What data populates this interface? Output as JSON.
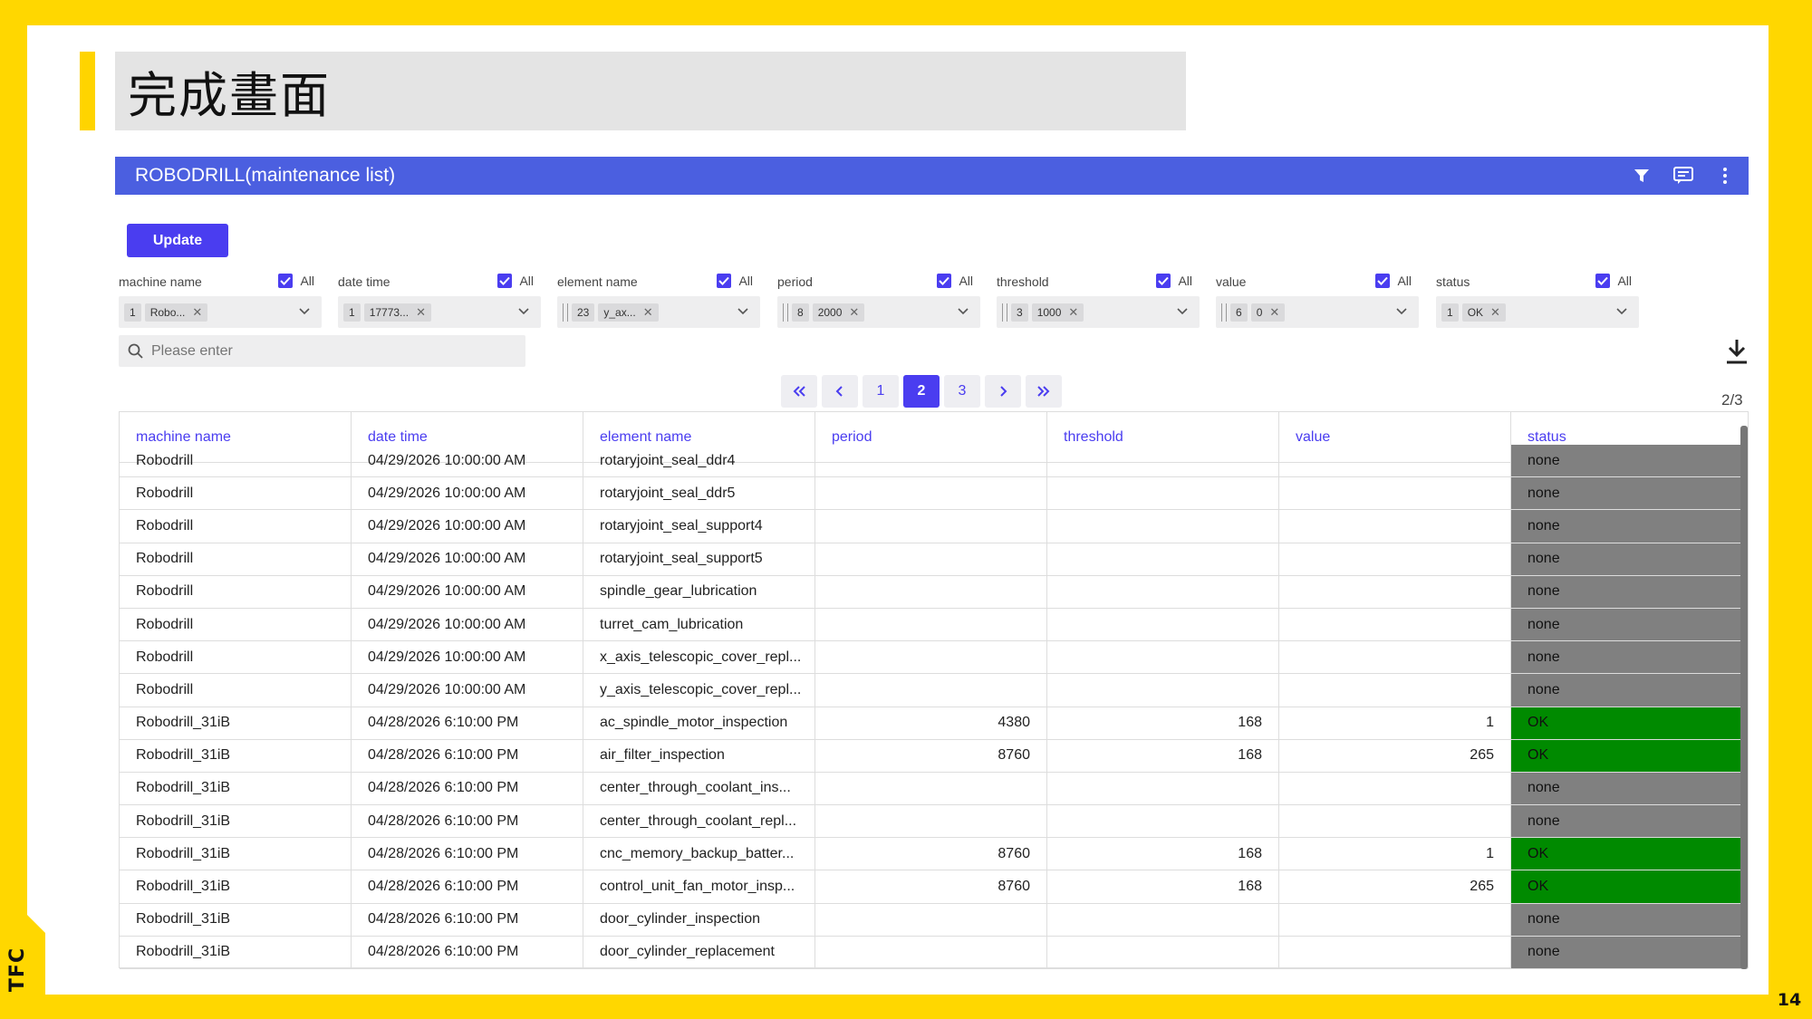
{
  "slide": {
    "title": "完成畫面",
    "logo": "TFC",
    "page_number": "14"
  },
  "app": {
    "title": "ROBODRILL(maintenance list)",
    "icons": [
      "filter-icon",
      "comment-icon",
      "more-vertical-icon"
    ],
    "accent_color": "#4B5FE0",
    "button_color": "#4A3DF0",
    "update_label": "Update"
  },
  "filters": [
    {
      "label": "machine name",
      "all_label": "All",
      "count": "1",
      "value": "Robo..."
    },
    {
      "label": "date time",
      "all_label": "All",
      "count": "1",
      "value": "17773..."
    },
    {
      "label": "element name",
      "all_label": "All",
      "count": "23",
      "value": "y_ax..."
    },
    {
      "label": "period",
      "all_label": "All",
      "count": "8",
      "value": "2000"
    },
    {
      "label": "threshold",
      "all_label": "All",
      "count": "3",
      "value": "1000"
    },
    {
      "label": "value",
      "all_label": "All",
      "count": "6",
      "value": "0"
    },
    {
      "label": "status",
      "all_label": "All",
      "count": "1",
      "value": "OK"
    }
  ],
  "search": {
    "placeholder": "Please enter"
  },
  "pagination": {
    "pages": [
      "1",
      "2",
      "3"
    ],
    "current": "2",
    "count_label": "2/3"
  },
  "table": {
    "columns": [
      "machine name",
      "date time",
      "element name",
      "period",
      "threshold",
      "value",
      "status"
    ],
    "rows": [
      [
        "Robodrill",
        "04/29/2026 10:00:00 AM",
        "rotaryjoint_seal_ddr4",
        "",
        "",
        "",
        "none"
      ],
      [
        "Robodrill",
        "04/29/2026 10:00:00 AM",
        "rotaryjoint_seal_ddr5",
        "",
        "",
        "",
        "none"
      ],
      [
        "Robodrill",
        "04/29/2026 10:00:00 AM",
        "rotaryjoint_seal_support4",
        "",
        "",
        "",
        "none"
      ],
      [
        "Robodrill",
        "04/29/2026 10:00:00 AM",
        "rotaryjoint_seal_support5",
        "",
        "",
        "",
        "none"
      ],
      [
        "Robodrill",
        "04/29/2026 10:00:00 AM",
        "spindle_gear_lubrication",
        "",
        "",
        "",
        "none"
      ],
      [
        "Robodrill",
        "04/29/2026 10:00:00 AM",
        "turret_cam_lubrication",
        "",
        "",
        "",
        "none"
      ],
      [
        "Robodrill",
        "04/29/2026 10:00:00 AM",
        "x_axis_telescopic_cover_repl...",
        "",
        "",
        "",
        "none"
      ],
      [
        "Robodrill",
        "04/29/2026 10:00:00 AM",
        "y_axis_telescopic_cover_repl...",
        "",
        "",
        "",
        "none"
      ],
      [
        "Robodrill_31iB",
        "04/28/2026 6:10:00 PM",
        "ac_spindle_motor_inspection",
        "4380",
        "168",
        "1",
        "OK"
      ],
      [
        "Robodrill_31iB",
        "04/28/2026 6:10:00 PM",
        "air_filter_inspection",
        "8760",
        "168",
        "265",
        "OK"
      ],
      [
        "Robodrill_31iB",
        "04/28/2026 6:10:00 PM",
        "center_through_coolant_ins...",
        "",
        "",
        "",
        "none"
      ],
      [
        "Robodrill_31iB",
        "04/28/2026 6:10:00 PM",
        "center_through_coolant_repl...",
        "",
        "",
        "",
        "none"
      ],
      [
        "Robodrill_31iB",
        "04/28/2026 6:10:00 PM",
        "cnc_memory_backup_batter...",
        "8760",
        "168",
        "1",
        "OK"
      ],
      [
        "Robodrill_31iB",
        "04/28/2026 6:10:00 PM",
        "control_unit_fan_motor_insp...",
        "8760",
        "168",
        "265",
        "OK"
      ],
      [
        "Robodrill_31iB",
        "04/28/2026 6:10:00 PM",
        "door_cylinder_inspection",
        "",
        "",
        "",
        "none"
      ],
      [
        "Robodrill_31iB",
        "04/28/2026 6:10:00 PM",
        "door_cylinder_replacement",
        "",
        "",
        "",
        "none"
      ]
    ],
    "status_colors": {
      "none": "#808080",
      "OK": "#008A00"
    }
  }
}
